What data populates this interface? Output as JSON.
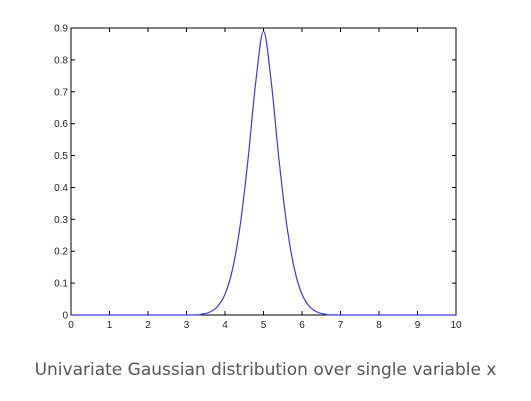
{
  "caption": "Univariate Gaussian distribution over single variable x",
  "chart_data": {
    "type": "line",
    "title": "",
    "xlabel": "",
    "ylabel": "",
    "xlim": [
      0,
      10
    ],
    "ylim": [
      0,
      0.9
    ],
    "x_ticks": [
      "0",
      "1",
      "2",
      "3",
      "4",
      "5",
      "6",
      "7",
      "8",
      "9",
      "10"
    ],
    "y_ticks": [
      "0",
      "0.1",
      "0.2",
      "0.3",
      "0.4",
      "0.5",
      "0.6",
      "0.7",
      "0.8",
      "0.9"
    ],
    "grid": false,
    "legend": "none",
    "line_color": "#3a3ad6",
    "series": [
      {
        "x": [
          0,
          3,
          3.4,
          3.6,
          3.8,
          4.0,
          4.2,
          4.4,
          4.6,
          4.8,
          5.0,
          5.2,
          5.4,
          5.6,
          5.8,
          6.0,
          6.2,
          6.4,
          6.6,
          7,
          10
        ],
        "y": [
          0,
          0,
          0.003,
          0.009,
          0.026,
          0.065,
          0.146,
          0.286,
          0.49,
          0.732,
          0.89,
          0.732,
          0.49,
          0.286,
          0.146,
          0.065,
          0.026,
          0.009,
          0.003,
          0,
          0
        ]
      }
    ]
  }
}
